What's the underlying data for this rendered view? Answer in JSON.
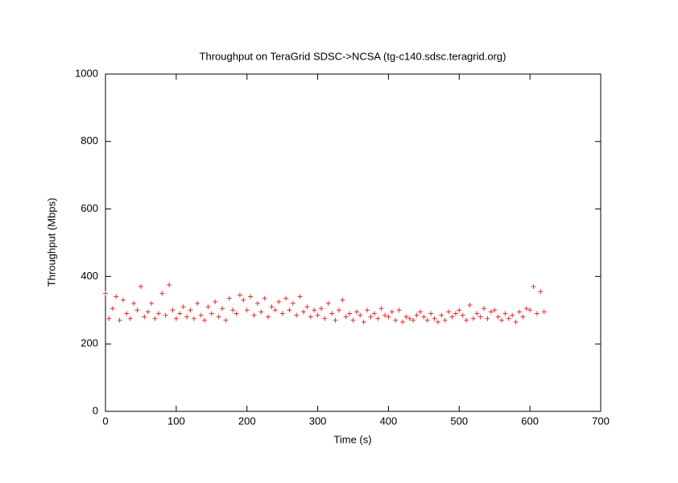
{
  "chart_data": {
    "type": "scatter",
    "title": "Throughput on TeraGrid SDSC->NCSA (tg-c140.sdsc.teragrid.org)",
    "xlabel": "Time (s)",
    "ylabel": "Throughput (Mbps)",
    "color": "#e03030",
    "marker": "+",
    "xlim": [
      0,
      700
    ],
    "ylim": [
      0,
      1000
    ],
    "xticks": [
      0,
      100,
      200,
      300,
      400,
      500,
      600,
      700
    ],
    "yticks": [
      0,
      200,
      400,
      600,
      800,
      1000
    ],
    "x": [
      0,
      5,
      10,
      15,
      20,
      25,
      30,
      35,
      40,
      45,
      50,
      55,
      60,
      65,
      70,
      75,
      80,
      85,
      90,
      95,
      100,
      105,
      110,
      115,
      120,
      125,
      130,
      135,
      140,
      145,
      150,
      155,
      160,
      165,
      170,
      175,
      180,
      185,
      190,
      195,
      200,
      205,
      210,
      215,
      220,
      225,
      230,
      235,
      240,
      245,
      250,
      255,
      260,
      265,
      270,
      275,
      280,
      285,
      290,
      295,
      300,
      305,
      310,
      315,
      320,
      325,
      330,
      335,
      340,
      345,
      350,
      355,
      360,
      365,
      370,
      375,
      380,
      385,
      390,
      395,
      400,
      405,
      410,
      415,
      420,
      425,
      430,
      435,
      440,
      445,
      450,
      455,
      460,
      465,
      470,
      475,
      480,
      485,
      490,
      495,
      500,
      505,
      510,
      515,
      520,
      525,
      530,
      535,
      540,
      545,
      550,
      555,
      560,
      565,
      570,
      575,
      580,
      585,
      590,
      595,
      600,
      605,
      610,
      615,
      620
    ],
    "values": [
      350,
      275,
      305,
      340,
      270,
      330,
      290,
      275,
      320,
      300,
      370,
      280,
      295,
      320,
      275,
      290,
      350,
      285,
      375,
      300,
      275,
      290,
      310,
      280,
      300,
      275,
      320,
      285,
      270,
      310,
      290,
      325,
      280,
      305,
      270,
      335,
      300,
      290,
      345,
      330,
      300,
      340,
      285,
      320,
      295,
      335,
      280,
      310,
      300,
      325,
      290,
      335,
      300,
      320,
      285,
      340,
      295,
      310,
      280,
      300,
      285,
      305,
      275,
      320,
      290,
      270,
      300,
      330,
      280,
      290,
      270,
      295,
      285,
      265,
      300,
      280,
      290,
      275,
      305,
      285,
      280,
      295,
      270,
      300,
      265,
      280,
      275,
      270,
      285,
      295,
      280,
      270,
      290,
      275,
      265,
      285,
      270,
      295,
      280,
      290,
      300,
      285,
      270,
      315,
      275,
      290,
      280,
      305,
      275,
      295,
      300,
      280,
      270,
      290,
      275,
      285,
      265,
      295,
      280,
      305,
      300,
      370,
      290,
      355,
      295
    ]
  }
}
